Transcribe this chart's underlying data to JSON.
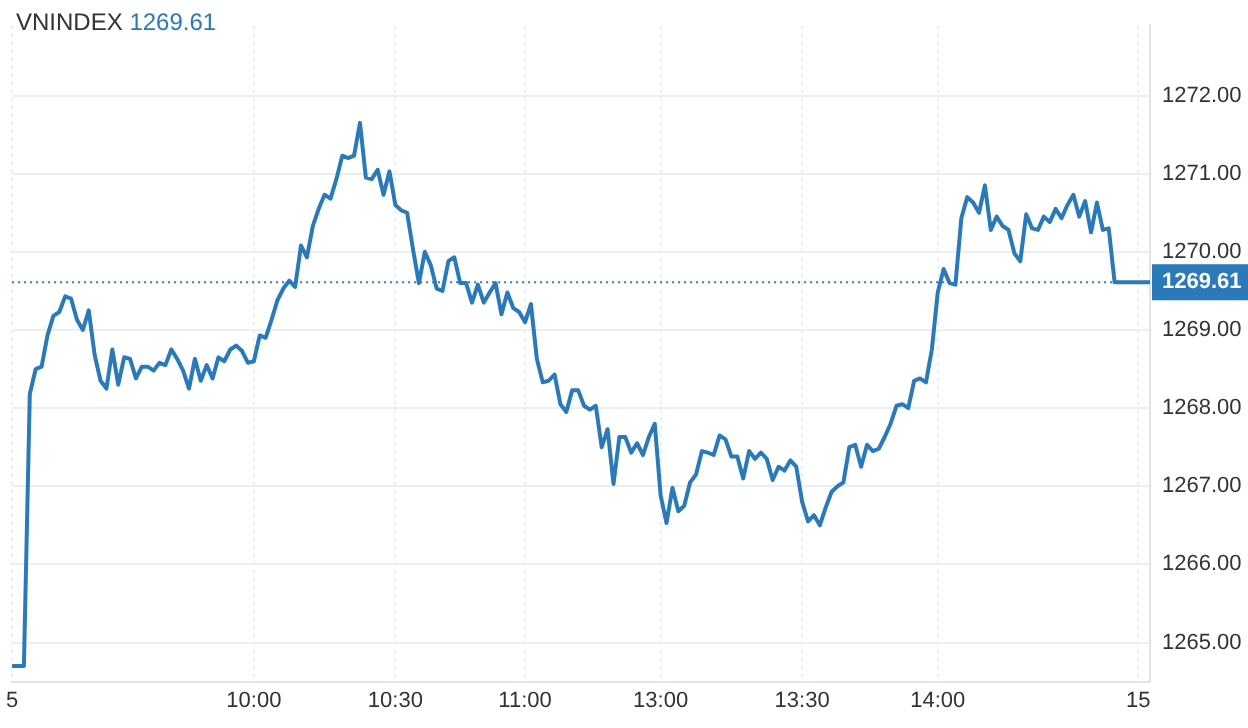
{
  "chart_data": {
    "type": "line",
    "title": "VNINDEX",
    "subtitle": "1269.61",
    "categories": [
      "5",
      null,
      null,
      null,
      null,
      null,
      null,
      null,
      null,
      null,
      null,
      null,
      null,
      null,
      null,
      null,
      null,
      null,
      null,
      null,
      null,
      null,
      null,
      null,
      null,
      null,
      null,
      null,
      null,
      null,
      null,
      null,
      null,
      null,
      null,
      null,
      null,
      null,
      null,
      null,
      null,
      "10:00",
      null,
      null,
      null,
      null,
      null,
      null,
      null,
      null,
      null,
      null,
      null,
      null,
      null,
      null,
      null,
      null,
      null,
      null,
      null,
      null,
      null,
      null,
      null,
      "10:30",
      null,
      null,
      null,
      null,
      null,
      null,
      null,
      null,
      null,
      null,
      null,
      null,
      null,
      null,
      null,
      null,
      null,
      null,
      null,
      null,
      null,
      "11:00",
      null,
      null,
      null,
      null,
      null,
      null,
      null,
      null,
      null,
      null,
      null,
      null,
      null,
      null,
      null,
      null,
      null,
      null,
      null,
      null,
      null,
      null,
      "13:00",
      null,
      null,
      null,
      null,
      null,
      null,
      null,
      null,
      null,
      null,
      null,
      null,
      null,
      null,
      null,
      null,
      null,
      null,
      null,
      null,
      null,
      null,
      null,
      "13:30",
      null,
      null,
      null,
      null,
      null,
      null,
      null,
      null,
      null,
      null,
      null,
      null,
      null,
      null,
      null,
      null,
      null,
      null,
      null,
      null,
      null,
      null,
      "14:00",
      null,
      null,
      null,
      null,
      null,
      null,
      null,
      null,
      null,
      null,
      null,
      null,
      null,
      null,
      null,
      null,
      null,
      null,
      null,
      null,
      null,
      null,
      null,
      null,
      null,
      null,
      null,
      null,
      null,
      null,
      null,
      null,
      null,
      "15",
      null,
      null
    ],
    "ylim": [
      1264.5,
      1272.9
    ],
    "yticks": [
      {
        "value": 1265,
        "label": "1265.00"
      },
      {
        "value": 1266,
        "label": "1266.00"
      },
      {
        "value": 1267,
        "label": "1267.00"
      },
      {
        "value": 1268,
        "label": "1268.00"
      },
      {
        "value": 1269,
        "label": "1269.00"
      },
      {
        "value": 1270,
        "label": "1270.00"
      },
      {
        "value": 1271,
        "label": "1271.00"
      },
      {
        "value": 1272,
        "label": "1272.00"
      }
    ],
    "grid": true,
    "legend": false,
    "marker": "none",
    "line_style": "solid",
    "ref_lines": [
      {
        "axis": "y",
        "value": 1269.61,
        "label": "1269.61",
        "color": "#2a7ab9",
        "line_style": "dotted"
      }
    ],
    "series": [
      {
        "color": "#2a7ab9",
        "values": [
          1264.7,
          1264.7,
          1264.7,
          1268.18,
          1268.5,
          1268.53,
          1268.93,
          1269.18,
          1269.23,
          1269.43,
          1269.4,
          1269.13,
          1269.0,
          1269.25,
          1268.68,
          1268.35,
          1268.25,
          1268.75,
          1268.3,
          1268.65,
          1268.63,
          1268.38,
          1268.53,
          1268.53,
          1268.48,
          1268.58,
          1268.55,
          1268.75,
          1268.63,
          1268.48,
          1268.25,
          1268.63,
          1268.35,
          1268.55,
          1268.38,
          1268.65,
          1268.6,
          1268.75,
          1268.8,
          1268.73,
          1268.58,
          1268.6,
          1268.93,
          1268.9,
          1269.13,
          1269.38,
          1269.53,
          1269.63,
          1269.55,
          1270.08,
          1269.93,
          1270.33,
          1270.55,
          1270.73,
          1270.68,
          1270.93,
          1271.23,
          1271.2,
          1271.23,
          1271.65,
          1270.95,
          1270.93,
          1271.05,
          1270.73,
          1271.03,
          1270.6,
          1270.53,
          1270.5,
          1270.03,
          1269.6,
          1270.0,
          1269.83,
          1269.53,
          1269.5,
          1269.88,
          1269.93,
          1269.6,
          1269.6,
          1269.35,
          1269.58,
          1269.35,
          1269.48,
          1269.6,
          1269.2,
          1269.48,
          1269.28,
          1269.23,
          1269.1,
          1269.33,
          1268.63,
          1268.33,
          1268.35,
          1268.43,
          1268.05,
          1267.95,
          1268.23,
          1268.23,
          1268.03,
          1267.98,
          1268.03,
          1267.5,
          1267.73,
          1267.03,
          1267.63,
          1267.63,
          1267.43,
          1267.55,
          1267.4,
          1267.63,
          1267.8,
          1266.88,
          1266.53,
          1266.98,
          1266.68,
          1266.75,
          1267.05,
          1267.15,
          1267.45,
          1267.43,
          1267.4,
          1267.65,
          1267.6,
          1267.38,
          1267.38,
          1267.1,
          1267.45,
          1267.35,
          1267.43,
          1267.35,
          1267.08,
          1267.25,
          1267.2,
          1267.33,
          1267.25,
          1266.8,
          1266.55,
          1266.63,
          1266.5,
          1266.73,
          1266.93,
          1267.0,
          1267.05,
          1267.5,
          1267.53,
          1267.25,
          1267.53,
          1267.45,
          1267.48,
          1267.63,
          1267.8,
          1268.03,
          1268.05,
          1268.0,
          1268.35,
          1268.38,
          1268.33,
          1268.75,
          1269.48,
          1269.78,
          1269.6,
          1269.58,
          1270.43,
          1270.7,
          1270.63,
          1270.5,
          1270.85,
          1270.28,
          1270.45,
          1270.33,
          1270.28,
          1269.98,
          1269.88,
          1270.48,
          1270.3,
          1270.28,
          1270.45,
          1270.38,
          1270.55,
          1270.43,
          1270.6,
          1270.73,
          1270.45,
          1270.65,
          1270.25,
          1270.63,
          1270.28,
          1270.3,
          1269.61,
          1269.61,
          1269.61,
          1269.61,
          1269.61,
          1269.61,
          1269.61
        ]
      }
    ]
  }
}
